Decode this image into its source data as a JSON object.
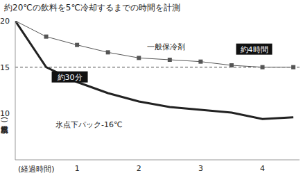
{
  "chart_data": {
    "type": "line",
    "title": "約20℃の飲料を5℃冷却するまでの時間を計測",
    "x_label": "(経過時間)",
    "y_label": "(飲料水温度)",
    "x": [
      0,
      0.5,
      1,
      1.5,
      2,
      2.5,
      3,
      3.5,
      4,
      4.5
    ],
    "series": [
      {
        "name": "一般保冷剤",
        "color": "#555555",
        "marker": "square",
        "line_style": "thin",
        "values": [
          20,
          18.3,
          17.4,
          16.6,
          16.0,
          15.8,
          15.6,
          15.2,
          15.0,
          15.0
        ]
      },
      {
        "name": "氷点下パック-16℃",
        "color": "#222222",
        "marker": "none",
        "line_style": "thick",
        "values": [
          20,
          15.0,
          13.4,
          12.2,
          11.3,
          10.7,
          10.4,
          10.1,
          9.4,
          9.6
        ]
      }
    ],
    "xlim": [
      0,
      4.6
    ],
    "xticks": [
      1,
      2,
      3,
      4
    ],
    "ylim": [
      5,
      20
    ],
    "yticks": [
      10,
      15,
      20
    ],
    "hline": 15,
    "annotations": [
      {
        "text": "約30分",
        "x": 0.5,
        "y": 15
      },
      {
        "text": "約4時間",
        "x": 4,
        "y": 15
      }
    ],
    "grid": false
  }
}
